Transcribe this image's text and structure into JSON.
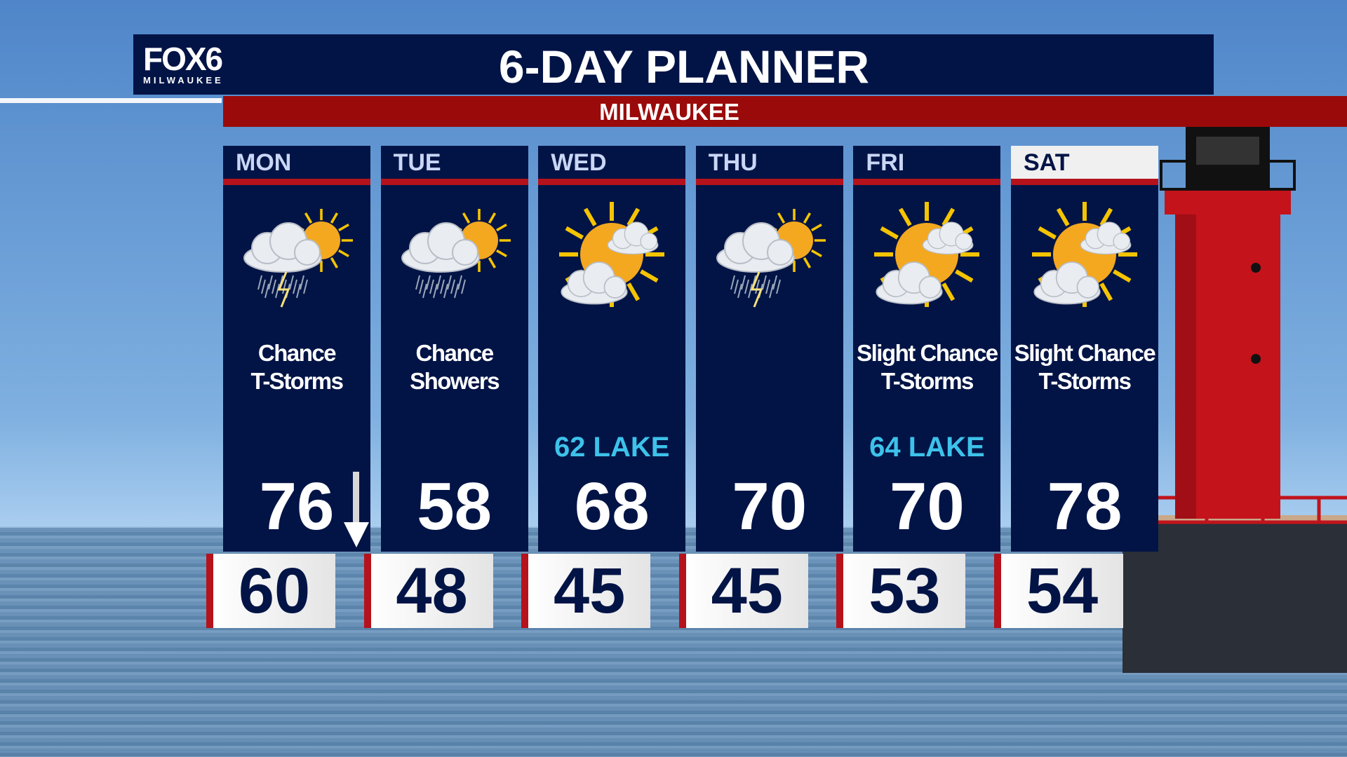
{
  "logo": {
    "brand": "FOX6",
    "city": "MILWAUKEE"
  },
  "header": {
    "title": "6-DAY PLANNER",
    "location": "MILWAUKEE"
  },
  "days": [
    {
      "day": "MON",
      "icon": "sun-cloud-thunderstorm-icon",
      "condition_1": "Chance",
      "condition_2": "T-Storms",
      "lake": "",
      "high": "76",
      "low": "60",
      "trend": "falling-arrow-icon",
      "selected": false
    },
    {
      "day": "TUE",
      "icon": "sun-cloud-rain-icon",
      "condition_1": "Chance",
      "condition_2": "Showers",
      "lake": "",
      "high": "58",
      "low": "48",
      "selected": false
    },
    {
      "day": "WED",
      "icon": "partly-sunny-icon",
      "condition_1": "",
      "condition_2": "",
      "lake": "62 LAKE",
      "high": "68",
      "low": "45",
      "selected": false
    },
    {
      "day": "THU",
      "icon": "sun-cloud-thunderstorm-icon",
      "condition_1": "",
      "condition_2": "",
      "lake": "",
      "high": "70",
      "low": "45",
      "selected": false
    },
    {
      "day": "FRI",
      "icon": "partly-sunny-icon",
      "condition_1": "Slight Chance",
      "condition_2": "T-Storms",
      "lake": "64 LAKE",
      "high": "70",
      "low": "53",
      "selected": false
    },
    {
      "day": "SAT",
      "icon": "partly-sunny-icon",
      "condition_1": "Slight Chance",
      "condition_2": "T-Storms",
      "lake": "",
      "high": "78",
      "low": "54",
      "selected": true
    }
  ],
  "colors": {
    "navy": "#021446",
    "red": "#b5121b",
    "lake": "#3dc2ea"
  }
}
